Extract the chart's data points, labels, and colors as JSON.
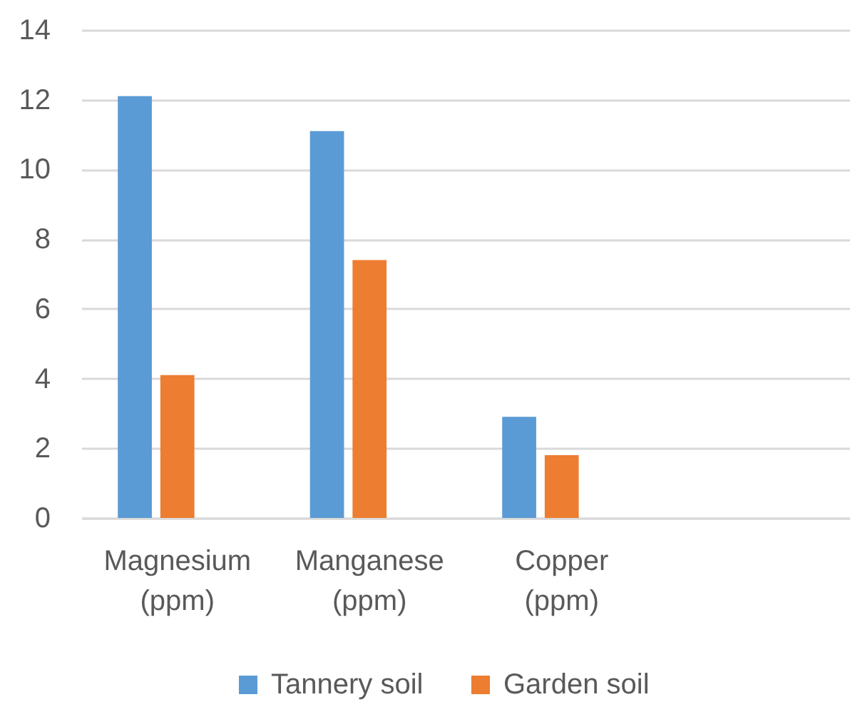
{
  "chart_data": {
    "type": "bar",
    "categories": [
      "Magnesium (ppm)",
      "Manganese (ppm)",
      "Copper (ppm)",
      null
    ],
    "series": [
      {
        "name": "Tannery soil",
        "color": "#5b9bd5",
        "values": [
          12.1,
          11.1,
          2.9,
          null
        ]
      },
      {
        "name": "Garden soil",
        "color": "#ed7d31",
        "values": [
          4.1,
          7.4,
          1.8,
          null
        ]
      }
    ],
    "ylim": [
      0,
      14
    ],
    "yticks": [
      0,
      2,
      4,
      6,
      8,
      10,
      12,
      14
    ],
    "grid": "y",
    "legend": "bottom"
  }
}
